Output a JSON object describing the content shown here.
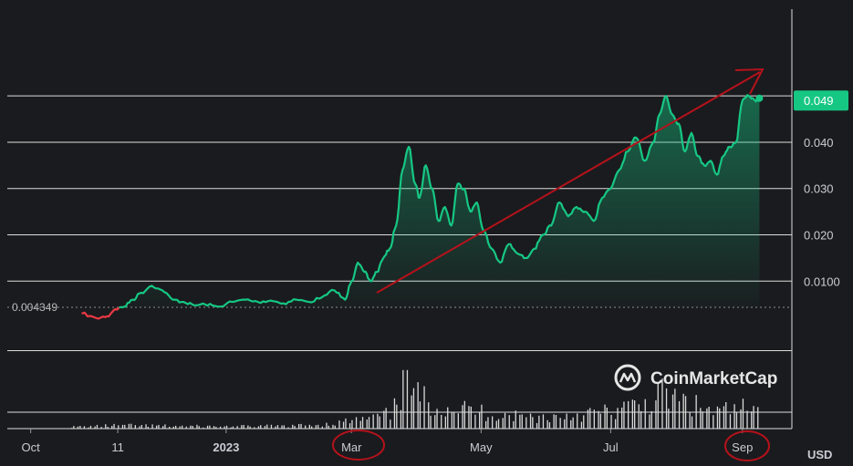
{
  "chart_data": {
    "type": "area",
    "title": "",
    "xlabel": "",
    "ylabel": "",
    "unit_label": "USD",
    "ylim": [
      -0.0055,
      0.0585
    ],
    "y_ticks": [
      "0.0100",
      "0.020",
      "0.030",
      "0.040"
    ],
    "x_ticks": [
      {
        "label": "Oct",
        "date": "2022-10-01",
        "bold": false
      },
      {
        "label": "11",
        "date": "2022-11-11",
        "bold": false
      },
      {
        "label": "2023",
        "date": "2023-01-01",
        "bold": true
      },
      {
        "label": "Mar",
        "date": "2023-03-01",
        "bold": false
      },
      {
        "label": "May",
        "date": "2023-05-01",
        "bold": false
      },
      {
        "label": "Jul",
        "date": "2023-07-01",
        "bold": false
      },
      {
        "label": "Sep",
        "date": "2023-09-01",
        "bold": false
      }
    ],
    "reference_price": {
      "label": "0.004349",
      "value": 0.004349
    },
    "current_price": {
      "label": "0.049",
      "value": 0.049
    },
    "series": [
      {
        "x": [
          "2022-10-25",
          "2022-11-01",
          "2022-11-06",
          "2022-11-10",
          "2022-11-14",
          "2022-11-18",
          "2022-11-22",
          "2022-11-27",
          "2022-12-02",
          "2022-12-07",
          "2022-12-12",
          "2022-12-17",
          "2022-12-22",
          "2022-12-28",
          "2023-01-04",
          "2023-01-10",
          "2023-01-16",
          "2023-01-22",
          "2023-01-28",
          "2023-02-03",
          "2023-02-09",
          "2023-02-15",
          "2023-02-21",
          "2023-02-26",
          "2023-03-01",
          "2023-03-04",
          "2023-03-07",
          "2023-03-10",
          "2023-03-13",
          "2023-03-16",
          "2023-03-19",
          "2023-03-22",
          "2023-03-25",
          "2023-03-28",
          "2023-03-31",
          "2023-04-02",
          "2023-04-05",
          "2023-04-08",
          "2023-04-11",
          "2023-04-14",
          "2023-04-17",
          "2023-04-20",
          "2023-04-23",
          "2023-04-26",
          "2023-04-29",
          "2023-05-02",
          "2023-05-06",
          "2023-05-10",
          "2023-05-14",
          "2023-05-18",
          "2023-05-22",
          "2023-05-26",
          "2023-05-30",
          "2023-06-03",
          "2023-06-07",
          "2023-06-11",
          "2023-06-15",
          "2023-06-19",
          "2023-06-23",
          "2023-06-27",
          "2023-07-01",
          "2023-07-05",
          "2023-07-09",
          "2023-07-13",
          "2023-07-17",
          "2023-07-21",
          "2023-07-24",
          "2023-07-27",
          "2023-07-30",
          "2023-08-02",
          "2023-08-05",
          "2023-08-08",
          "2023-08-11",
          "2023-08-14",
          "2023-08-17",
          "2023-08-20",
          "2023-08-23",
          "2023-08-26",
          "2023-08-29",
          "2023-09-01",
          "2023-09-04",
          "2023-09-07",
          "2023-09-09"
        ],
        "y": [
          0.003,
          0.002,
          0.0024,
          0.004,
          0.0045,
          0.006,
          0.0075,
          0.009,
          0.008,
          0.006,
          0.0055,
          0.0048,
          0.005,
          0.0045,
          0.0055,
          0.006,
          0.0055,
          0.0058,
          0.0052,
          0.006,
          0.0055,
          0.0065,
          0.008,
          0.006,
          0.01,
          0.014,
          0.012,
          0.01,
          0.012,
          0.015,
          0.017,
          0.022,
          0.034,
          0.039,
          0.031,
          0.028,
          0.035,
          0.03,
          0.023,
          0.026,
          0.022,
          0.031,
          0.03,
          0.025,
          0.027,
          0.021,
          0.017,
          0.014,
          0.018,
          0.016,
          0.015,
          0.017,
          0.02,
          0.022,
          0.027,
          0.024,
          0.026,
          0.025,
          0.023,
          0.028,
          0.03,
          0.034,
          0.038,
          0.041,
          0.036,
          0.04,
          0.046,
          0.05,
          0.046,
          0.044,
          0.038,
          0.042,
          0.037,
          0.035,
          0.036,
          0.033,
          0.037,
          0.039,
          0.04,
          0.049,
          0.05,
          0.049,
          0.0495
        ]
      }
    ],
    "volume": {
      "x": [
        "2022-10-20",
        "2022-11-11",
        "2022-12-01",
        "2023-01-01",
        "2023-02-01",
        "2023-02-20",
        "2023-03-01",
        "2023-03-10",
        "2023-03-20",
        "2023-03-26",
        "2023-04-01",
        "2023-04-10",
        "2023-04-20",
        "2023-05-01",
        "2023-05-15",
        "2023-06-01",
        "2023-06-15",
        "2023-07-01",
        "2023-07-15",
        "2023-07-25",
        "2023-08-01",
        "2023-08-10",
        "2023-08-20",
        "2023-09-01",
        "2023-09-09"
      ],
      "y": [
        0.3,
        0.6,
        0.5,
        0.4,
        0.5,
        0.9,
        1.4,
        1.8,
        2.6,
        8.5,
        5.5,
        4.5,
        3.8,
        3.0,
        2.4,
        2.0,
        2.6,
        3.0,
        4.2,
        6.0,
        5.2,
        4.0,
        3.0,
        3.6,
        2.8
      ]
    }
  },
  "brand": {
    "name": "CoinMarketCap",
    "icon": "coinmarketcap-logo-icon"
  },
  "colors": {
    "up_line": "#16c784",
    "down_line": "#ea3943",
    "badge": "#16c784",
    "annotation": "#b5121b",
    "volume": "#d9d9d9",
    "grid": "#dcdcdc",
    "background": "#1a1b1e"
  }
}
